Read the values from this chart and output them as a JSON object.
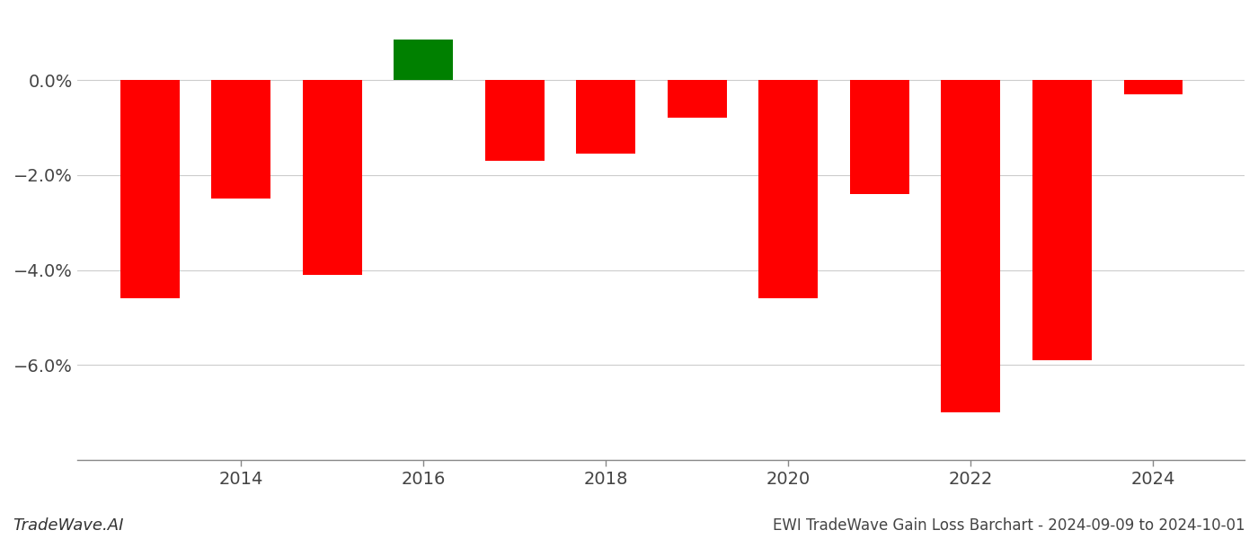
{
  "years": [
    2013,
    2014,
    2015,
    2016,
    2017,
    2018,
    2019,
    2020,
    2021,
    2022,
    2023,
    2024
  ],
  "values": [
    -4.6,
    -2.5,
    -4.1,
    0.85,
    -1.7,
    -1.55,
    -0.8,
    -4.6,
    -2.4,
    -7.0,
    -5.9,
    -0.3
  ],
  "bar_colors": [
    "#ff0000",
    "#ff0000",
    "#ff0000",
    "#008000",
    "#ff0000",
    "#ff0000",
    "#ff0000",
    "#ff0000",
    "#ff0000",
    "#ff0000",
    "#ff0000",
    "#ff0000"
  ],
  "title": "EWI TradeWave Gain Loss Barchart - 2024-09-09 to 2024-10-01",
  "watermark": "TradeWave.AI",
  "ylim_min": -8.0,
  "ylim_max": 1.4,
  "ytick_vals": [
    0.0,
    -2.0,
    -4.0,
    -6.0
  ],
  "ytick_labels": [
    "0.0%",
    "−2.0%",
    "−4.0%",
    "−6.0%"
  ],
  "xticks": [
    2014,
    2016,
    2018,
    2020,
    2022,
    2024
  ],
  "background_color": "#ffffff",
  "grid_color": "#cccccc",
  "bar_width": 0.65,
  "xlim_min": 2012.2,
  "xlim_max": 2025.0
}
